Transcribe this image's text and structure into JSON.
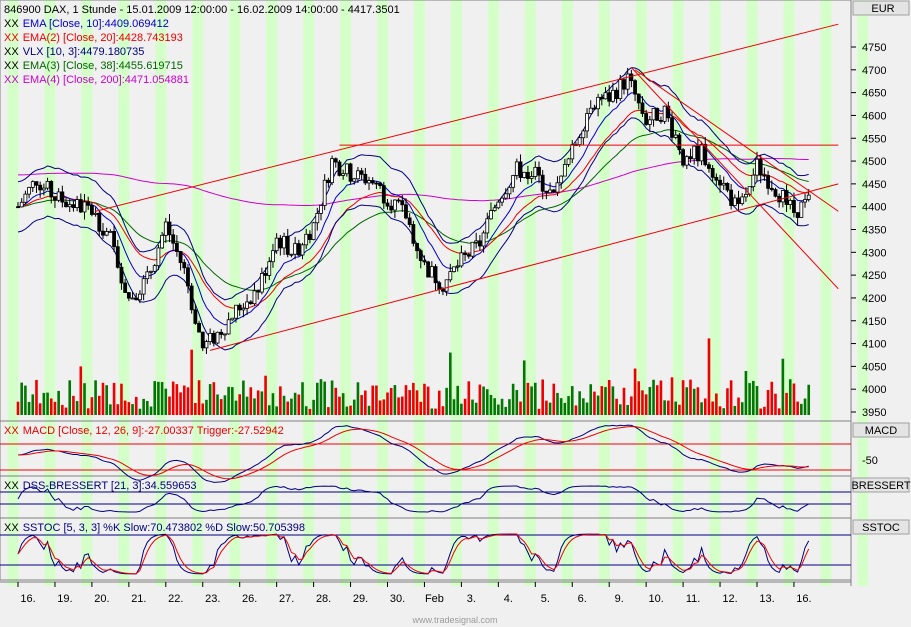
{
  "header": {
    "title": "846900  DAX, 1 Stunde - 15.01.2009 12:00:00 - 16.02.2009 14:00:00 - 4417.3501",
    "currency": "EUR"
  },
  "legend": [
    {
      "prefix": "XX",
      "text": "EMA [Close, 10]:4409.069412",
      "color": "#0000cc"
    },
    {
      "prefix": "XX",
      "text": "EMA(2) [Close, 20]:4428.743193",
      "color": "#ee0000"
    },
    {
      "prefix": "XX",
      "text": "VLX [10, 3]:4479.180735",
      "color": "#000080"
    },
    {
      "prefix": "XX",
      "text": "EMA(3) [Close, 38]:4455.619715",
      "color": "#006600"
    },
    {
      "prefix": "XX",
      "text": "EMA(4) [Close, 200]:4471.054881",
      "color": "#cc00cc"
    }
  ],
  "panels": {
    "macd": {
      "legend": "MACD [Close, 12, 26, 9]:-27.00337 Trigger:-27.52942",
      "tag": "MACD",
      "tick": "-50"
    },
    "dss": {
      "legend": "DSS-BRESSERT [21, 3]:34.559653",
      "tag": "BRESSERT"
    },
    "sstoc": {
      "legend": "SSTOC [5, 3, 3] %K Slow:70.473802 %D Slow:50.705398",
      "tag": "SSTOC"
    }
  },
  "watermark": "www.tradesignal.com",
  "chart_data": {
    "type": "candlestick",
    "title": "846900  DAX, 1 Stunde - 15.01.2009 12:00:00 - 16.02.2009 14:00:00 - 4417.3501",
    "y_ticks": [
      3950,
      4000,
      4050,
      4100,
      4150,
      4200,
      4250,
      4300,
      4350,
      4400,
      4450,
      4500,
      4550,
      4600,
      4650,
      4700,
      4750
    ],
    "y_range": [
      3930,
      4800
    ],
    "x_labels": [
      "16.",
      "19.",
      "20.",
      "21.",
      "22.",
      "23.",
      "26.",
      "27.",
      "28.",
      "29.",
      "30.",
      "Feb",
      "3.",
      "4.",
      "5.",
      "6.",
      "9.",
      "10.",
      "11.",
      "12.",
      "13.",
      "16."
    ],
    "close_anchors": [
      {
        "day": 0,
        "value": 4400
      },
      {
        "day": 0.5,
        "value": 4460
      },
      {
        "day": 1,
        "value": 4420
      },
      {
        "day": 2,
        "value": 4390
      },
      {
        "day": 2.5,
        "value": 4330
      },
      {
        "day": 3,
        "value": 4200
      },
      {
        "day": 3.5,
        "value": 4240
      },
      {
        "day": 4,
        "value": 4360
      },
      {
        "day": 4.5,
        "value": 4260
      },
      {
        "day": 5,
        "value": 4090
      },
      {
        "day": 5.5,
        "value": 4130
      },
      {
        "day": 6,
        "value": 4180
      },
      {
        "day": 6.5,
        "value": 4220
      },
      {
        "day": 7,
        "value": 4330
      },
      {
        "day": 7.5,
        "value": 4300
      },
      {
        "day": 8,
        "value": 4360
      },
      {
        "day": 8.5,
        "value": 4500
      },
      {
        "day": 9,
        "value": 4470
      },
      {
        "day": 9.5,
        "value": 4460
      },
      {
        "day": 10,
        "value": 4420
      },
      {
        "day": 10.5,
        "value": 4380
      },
      {
        "day": 11,
        "value": 4270
      },
      {
        "day": 11.5,
        "value": 4230
      },
      {
        "day": 12,
        "value": 4280
      },
      {
        "day": 12.5,
        "value": 4320
      },
      {
        "day": 13,
        "value": 4420
      },
      {
        "day": 13.5,
        "value": 4480
      },
      {
        "day": 14,
        "value": 4470
      },
      {
        "day": 14.5,
        "value": 4420
      },
      {
        "day": 15,
        "value": 4520
      },
      {
        "day": 15.5,
        "value": 4630
      },
      {
        "day": 16,
        "value": 4640
      },
      {
        "day": 16.5,
        "value": 4680
      },
      {
        "day": 17,
        "value": 4590
      },
      {
        "day": 17.5,
        "value": 4610
      },
      {
        "day": 18,
        "value": 4510
      },
      {
        "day": 18.5,
        "value": 4520
      },
      {
        "day": 19,
        "value": 4460
      },
      {
        "day": 19.5,
        "value": 4390
      },
      {
        "day": 20,
        "value": 4490
      },
      {
        "day": 20.5,
        "value": 4440
      },
      {
        "day": 21,
        "value": 4390
      },
      {
        "day": 21.4,
        "value": 4410
      }
    ],
    "trend_lines": [
      {
        "from": {
          "day": 2.1,
          "value": 4390
        },
        "to": {
          "day": 22.2,
          "value": 4800
        }
      },
      {
        "from": {
          "day": 5.2,
          "value": 4085
        },
        "to": {
          "day": 22.2,
          "value": 4450
        }
      },
      {
        "from": {
          "day": 16.6,
          "value": 4705
        },
        "to": {
          "day": 22.2,
          "value": 4220
        }
      },
      {
        "from": {
          "day": 16.7,
          "value": 4700
        },
        "to": {
          "day": 22.2,
          "value": 4390
        }
      },
      {
        "from": {
          "day": 8.7,
          "value": 4535
        },
        "to": {
          "day": 22.2,
          "value": 4535
        }
      }
    ]
  }
}
